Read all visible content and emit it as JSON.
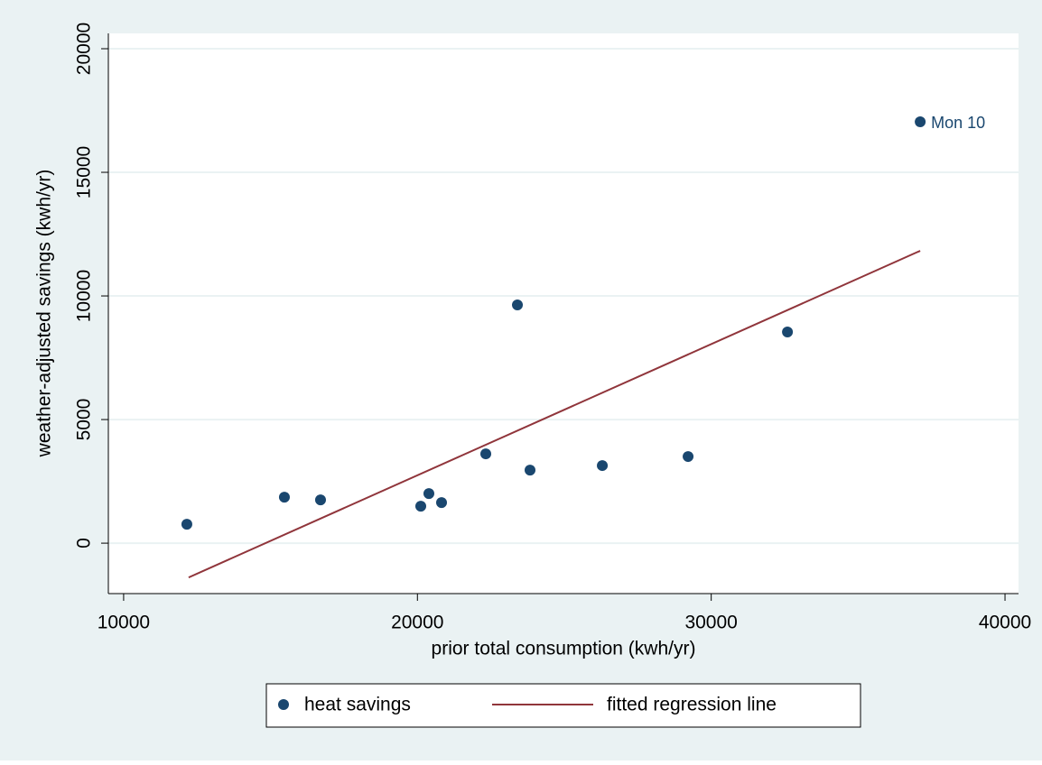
{
  "chart_data": {
    "type": "scatter",
    "x_label": "prior  total consumption (kwh/yr)",
    "y_label": "weather-adjusted savings (kwh/yr)",
    "xlim": [
      9480,
      40460
    ],
    "ylim": [
      -2040,
      20620
    ],
    "xticks": [
      10000,
      20000,
      30000,
      40000
    ],
    "yticks": [
      0,
      5000,
      10000,
      15000,
      20000
    ],
    "grid": true,
    "legend": "bottom",
    "series": [
      {
        "name": "heat savings",
        "type": "scatter",
        "color": "#1a476f",
        "x": [
          12152,
          15472,
          16702,
          20114,
          20390,
          20821,
          22327,
          23403,
          23833,
          26293,
          29213,
          32595,
          37113
        ],
        "values": [
          766,
          1861,
          1752,
          1496,
          2007,
          1642,
          3613,
          9635,
          2956,
          3139,
          3504,
          8540,
          17044
        ],
        "point_labels": [
          null,
          null,
          null,
          null,
          null,
          null,
          null,
          null,
          null,
          null,
          null,
          null,
          "Mon 10"
        ]
      },
      {
        "name": "fitted regression line",
        "type": "line",
        "color": "#90353b",
        "x": [
          12213,
          37113
        ],
        "values": [
          -1387,
          11825
        ]
      }
    ]
  }
}
